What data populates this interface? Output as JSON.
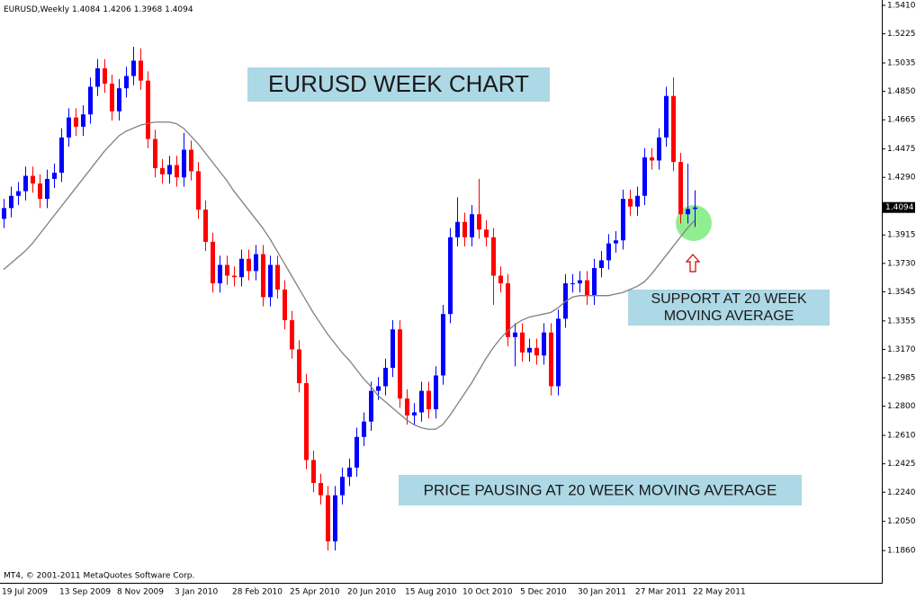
{
  "chart_data": {
    "type": "candlestick",
    "symbol": "EURUSD,Weekly",
    "title": "EURUSD WEEK CHART",
    "annotations": [
      {
        "lines": [
          "SUPPORT AT 20 WEEK",
          "MOVING AVERAGE"
        ]
      },
      {
        "lines": [
          "PRICE PAUSING AT 20 WEEK MOVING AVERAGE"
        ]
      }
    ],
    "footer": "MT4, © 2001-2011 MetaQuotes Software Corp.",
    "up_color": "#0000ff",
    "down_color": "#ff0000",
    "categories": [
      "19 Jul 2009",
      null,
      null,
      null,
      null,
      null,
      null,
      null,
      "13 Sep 2009",
      null,
      null,
      null,
      null,
      null,
      null,
      null,
      "8 Nov 2009",
      null,
      null,
      null,
      null,
      null,
      null,
      null,
      "3 Jan 2010",
      null,
      null,
      null,
      null,
      null,
      null,
      null,
      "28 Feb 2010",
      null,
      null,
      null,
      null,
      null,
      null,
      null,
      "25 Apr 2010",
      null,
      null,
      null,
      null,
      null,
      null,
      null,
      "20 Jun 2010",
      null,
      null,
      null,
      null,
      null,
      null,
      null,
      "15 Aug 2010",
      null,
      null,
      null,
      null,
      null,
      null,
      null,
      "10 Oct 2010",
      null,
      null,
      null,
      null,
      null,
      null,
      null,
      "5 Dec 2010",
      null,
      null,
      null,
      null,
      null,
      null,
      null,
      "30 Jan 2011",
      null,
      null,
      null,
      null,
      null,
      null,
      null,
      "27 Mar 2011",
      null,
      null,
      null,
      null,
      null,
      null,
      null,
      "22 May 2011"
    ],
    "open": [
      1.402,
      1.409,
      1.417,
      1.42,
      1.43,
      1.425,
      1.415,
      1.428,
      1.432,
      1.455,
      1.468,
      1.462,
      1.47,
      1.488,
      1.5,
      1.49,
      1.472,
      1.487,
      1.495,
      1.505,
      1.492,
      1.454,
      1.435,
      1.431,
      1.437,
      1.429,
      1.447,
      1.433,
      1.408,
      1.387,
      1.36,
      1.372,
      1.365,
      1.364,
      1.376,
      1.368,
      1.379,
      1.351,
      1.372,
      1.356,
      1.336,
      1.317,
      1.295,
      1.245,
      1.23,
      1.222,
      1.192,
      1.222,
      1.234,
      1.24,
      1.26,
      1.27,
      1.29,
      1.293,
      1.305,
      1.33,
      1.285,
      1.274,
      1.276,
      1.29,
      1.278,
      1.3,
      1.34,
      1.39,
      1.4,
      1.39,
      1.405,
      1.395,
      1.39,
      1.365,
      1.36,
      1.325,
      1.328,
      1.315,
      1.318,
      1.313,
      1.328,
      1.293,
      1.337,
      1.36,
      1.36,
      1.362,
      1.352,
      1.37,
      1.375,
      1.386,
      1.388,
      1.415,
      1.41,
      1.417,
      1.442,
      1.44,
      1.455,
      1.482,
      1.439,
      1.405,
      1.4084
    ],
    "high": [
      1.415,
      1.423,
      1.426,
      1.436,
      1.436,
      1.431,
      1.434,
      1.438,
      1.461,
      1.474,
      1.474,
      1.476,
      1.494,
      1.506,
      1.506,
      1.496,
      1.493,
      1.501,
      1.514,
      1.513,
      1.498,
      1.46,
      1.441,
      1.443,
      1.443,
      1.458,
      1.453,
      1.439,
      1.414,
      1.393,
      1.378,
      1.378,
      1.371,
      1.382,
      1.382,
      1.385,
      1.385,
      1.378,
      1.378,
      1.362,
      1.342,
      1.323,
      1.301,
      1.251,
      1.236,
      1.228,
      1.228,
      1.24,
      1.246,
      1.266,
      1.276,
      1.296,
      1.299,
      1.311,
      1.336,
      1.336,
      1.291,
      1.282,
      1.296,
      1.296,
      1.306,
      1.346,
      1.396,
      1.416,
      1.406,
      1.411,
      1.428,
      1.401,
      1.396,
      1.371,
      1.366,
      1.334,
      1.334,
      1.324,
      1.324,
      1.334,
      1.334,
      1.343,
      1.366,
      1.366,
      1.368,
      1.368,
      1.376,
      1.381,
      1.392,
      1.394,
      1.421,
      1.421,
      1.423,
      1.448,
      1.448,
      1.461,
      1.488,
      1.494,
      1.445,
      1.438,
      1.4206
    ],
    "low": [
      1.396,
      1.403,
      1.411,
      1.414,
      1.419,
      1.409,
      1.409,
      1.422,
      1.426,
      1.449,
      1.456,
      1.456,
      1.464,
      1.482,
      1.484,
      1.466,
      1.466,
      1.481,
      1.489,
      1.486,
      1.448,
      1.429,
      1.425,
      1.425,
      1.423,
      1.423,
      1.427,
      1.402,
      1.381,
      1.354,
      1.354,
      1.359,
      1.358,
      1.358,
      1.362,
      1.362,
      1.345,
      1.345,
      1.35,
      1.33,
      1.311,
      1.289,
      1.239,
      1.224,
      1.216,
      1.186,
      1.186,
      1.216,
      1.228,
      1.234,
      1.254,
      1.264,
      1.284,
      1.287,
      1.299,
      1.279,
      1.268,
      1.268,
      1.27,
      1.272,
      1.272,
      1.294,
      1.334,
      1.384,
      1.384,
      1.384,
      1.389,
      1.384,
      1.346,
      1.354,
      1.319,
      1.306,
      1.309,
      1.309,
      1.307,
      1.307,
      1.287,
      1.287,
      1.331,
      1.354,
      1.354,
      1.346,
      1.346,
      1.364,
      1.369,
      1.38,
      1.382,
      1.404,
      1.404,
      1.411,
      1.434,
      1.434,
      1.449,
      1.433,
      1.399,
      1.399,
      1.3968
    ],
    "close": [
      1.409,
      1.417,
      1.42,
      1.43,
      1.425,
      1.415,
      1.428,
      1.432,
      1.455,
      1.468,
      1.462,
      1.47,
      1.488,
      1.5,
      1.49,
      1.472,
      1.487,
      1.495,
      1.505,
      1.492,
      1.454,
      1.435,
      1.431,
      1.437,
      1.429,
      1.447,
      1.433,
      1.408,
      1.387,
      1.36,
      1.372,
      1.365,
      1.364,
      1.376,
      1.368,
      1.379,
      1.351,
      1.372,
      1.356,
      1.336,
      1.317,
      1.295,
      1.245,
      1.23,
      1.222,
      1.192,
      1.222,
      1.234,
      1.24,
      1.26,
      1.27,
      1.29,
      1.293,
      1.305,
      1.33,
      1.285,
      1.274,
      1.276,
      1.29,
      1.278,
      1.3,
      1.34,
      1.39,
      1.4,
      1.39,
      1.405,
      1.395,
      1.39,
      1.365,
      1.36,
      1.325,
      1.328,
      1.315,
      1.318,
      1.313,
      1.328,
      1.293,
      1.337,
      1.36,
      1.36,
      1.362,
      1.352,
      1.37,
      1.375,
      1.386,
      1.388,
      1.415,
      1.41,
      1.417,
      1.442,
      1.44,
      1.455,
      1.482,
      1.439,
      1.405,
      1.4084,
      1.4094
    ],
    "ma": {
      "color": "#808080",
      "values": [
        1.369,
        1.373,
        1.377,
        1.381,
        1.386,
        1.392,
        1.398,
        1.404,
        1.41,
        1.416,
        1.422,
        1.428,
        1.434,
        1.44,
        1.446,
        1.451,
        1.456,
        1.459,
        1.461,
        1.463,
        1.464,
        1.465,
        1.465,
        1.465,
        1.464,
        1.461,
        1.456,
        1.451,
        1.445,
        1.439,
        1.433,
        1.427,
        1.42,
        1.414,
        1.408,
        1.402,
        1.396,
        1.389,
        1.381,
        1.373,
        1.365,
        1.357,
        1.349,
        1.341,
        1.334,
        1.327,
        1.321,
        1.315,
        1.31,
        1.304,
        1.298,
        1.293,
        1.287,
        1.283,
        1.279,
        1.275,
        1.271,
        1.268,
        1.266,
        1.265,
        1.265,
        1.268,
        1.274,
        1.281,
        1.288,
        1.295,
        1.303,
        1.311,
        1.318,
        1.324,
        1.329,
        1.333,
        1.336,
        1.338,
        1.339,
        1.34,
        1.341,
        1.344,
        1.348,
        1.351,
        1.352,
        1.352,
        1.352,
        1.352,
        1.352,
        1.353,
        1.354,
        1.356,
        1.358,
        1.361,
        1.366,
        1.372,
        1.378,
        1.384,
        1.39,
        1.396,
        1.401
      ]
    },
    "ylim": [
      1.165,
      1.5445
    ],
    "yticks": [
      {
        "value": 1.541,
        "label": "1.5410"
      },
      1.5225,
      1.5035,
      {
        "value": 1.485,
        "label": "1.4850"
      },
      1.4665,
      1.4475,
      {
        "value": 1.429,
        "label": "1.4290"
      },
      1.3915,
      {
        "value": 1.373,
        "label": "1.3730"
      },
      1.3545,
      1.3355,
      {
        "value": 1.317,
        "label": "1.3170"
      },
      1.2985,
      {
        "value": 1.28,
        "label": "1.2800"
      },
      {
        "value": 1.261,
        "label": "1.2610"
      },
      1.2425,
      {
        "value": 1.224,
        "label": "1.2240"
      },
      {
        "value": 1.205,
        "label": "1.2050"
      },
      {
        "value": 1.186,
        "label": "1.1860"
      }
    ]
  }
}
